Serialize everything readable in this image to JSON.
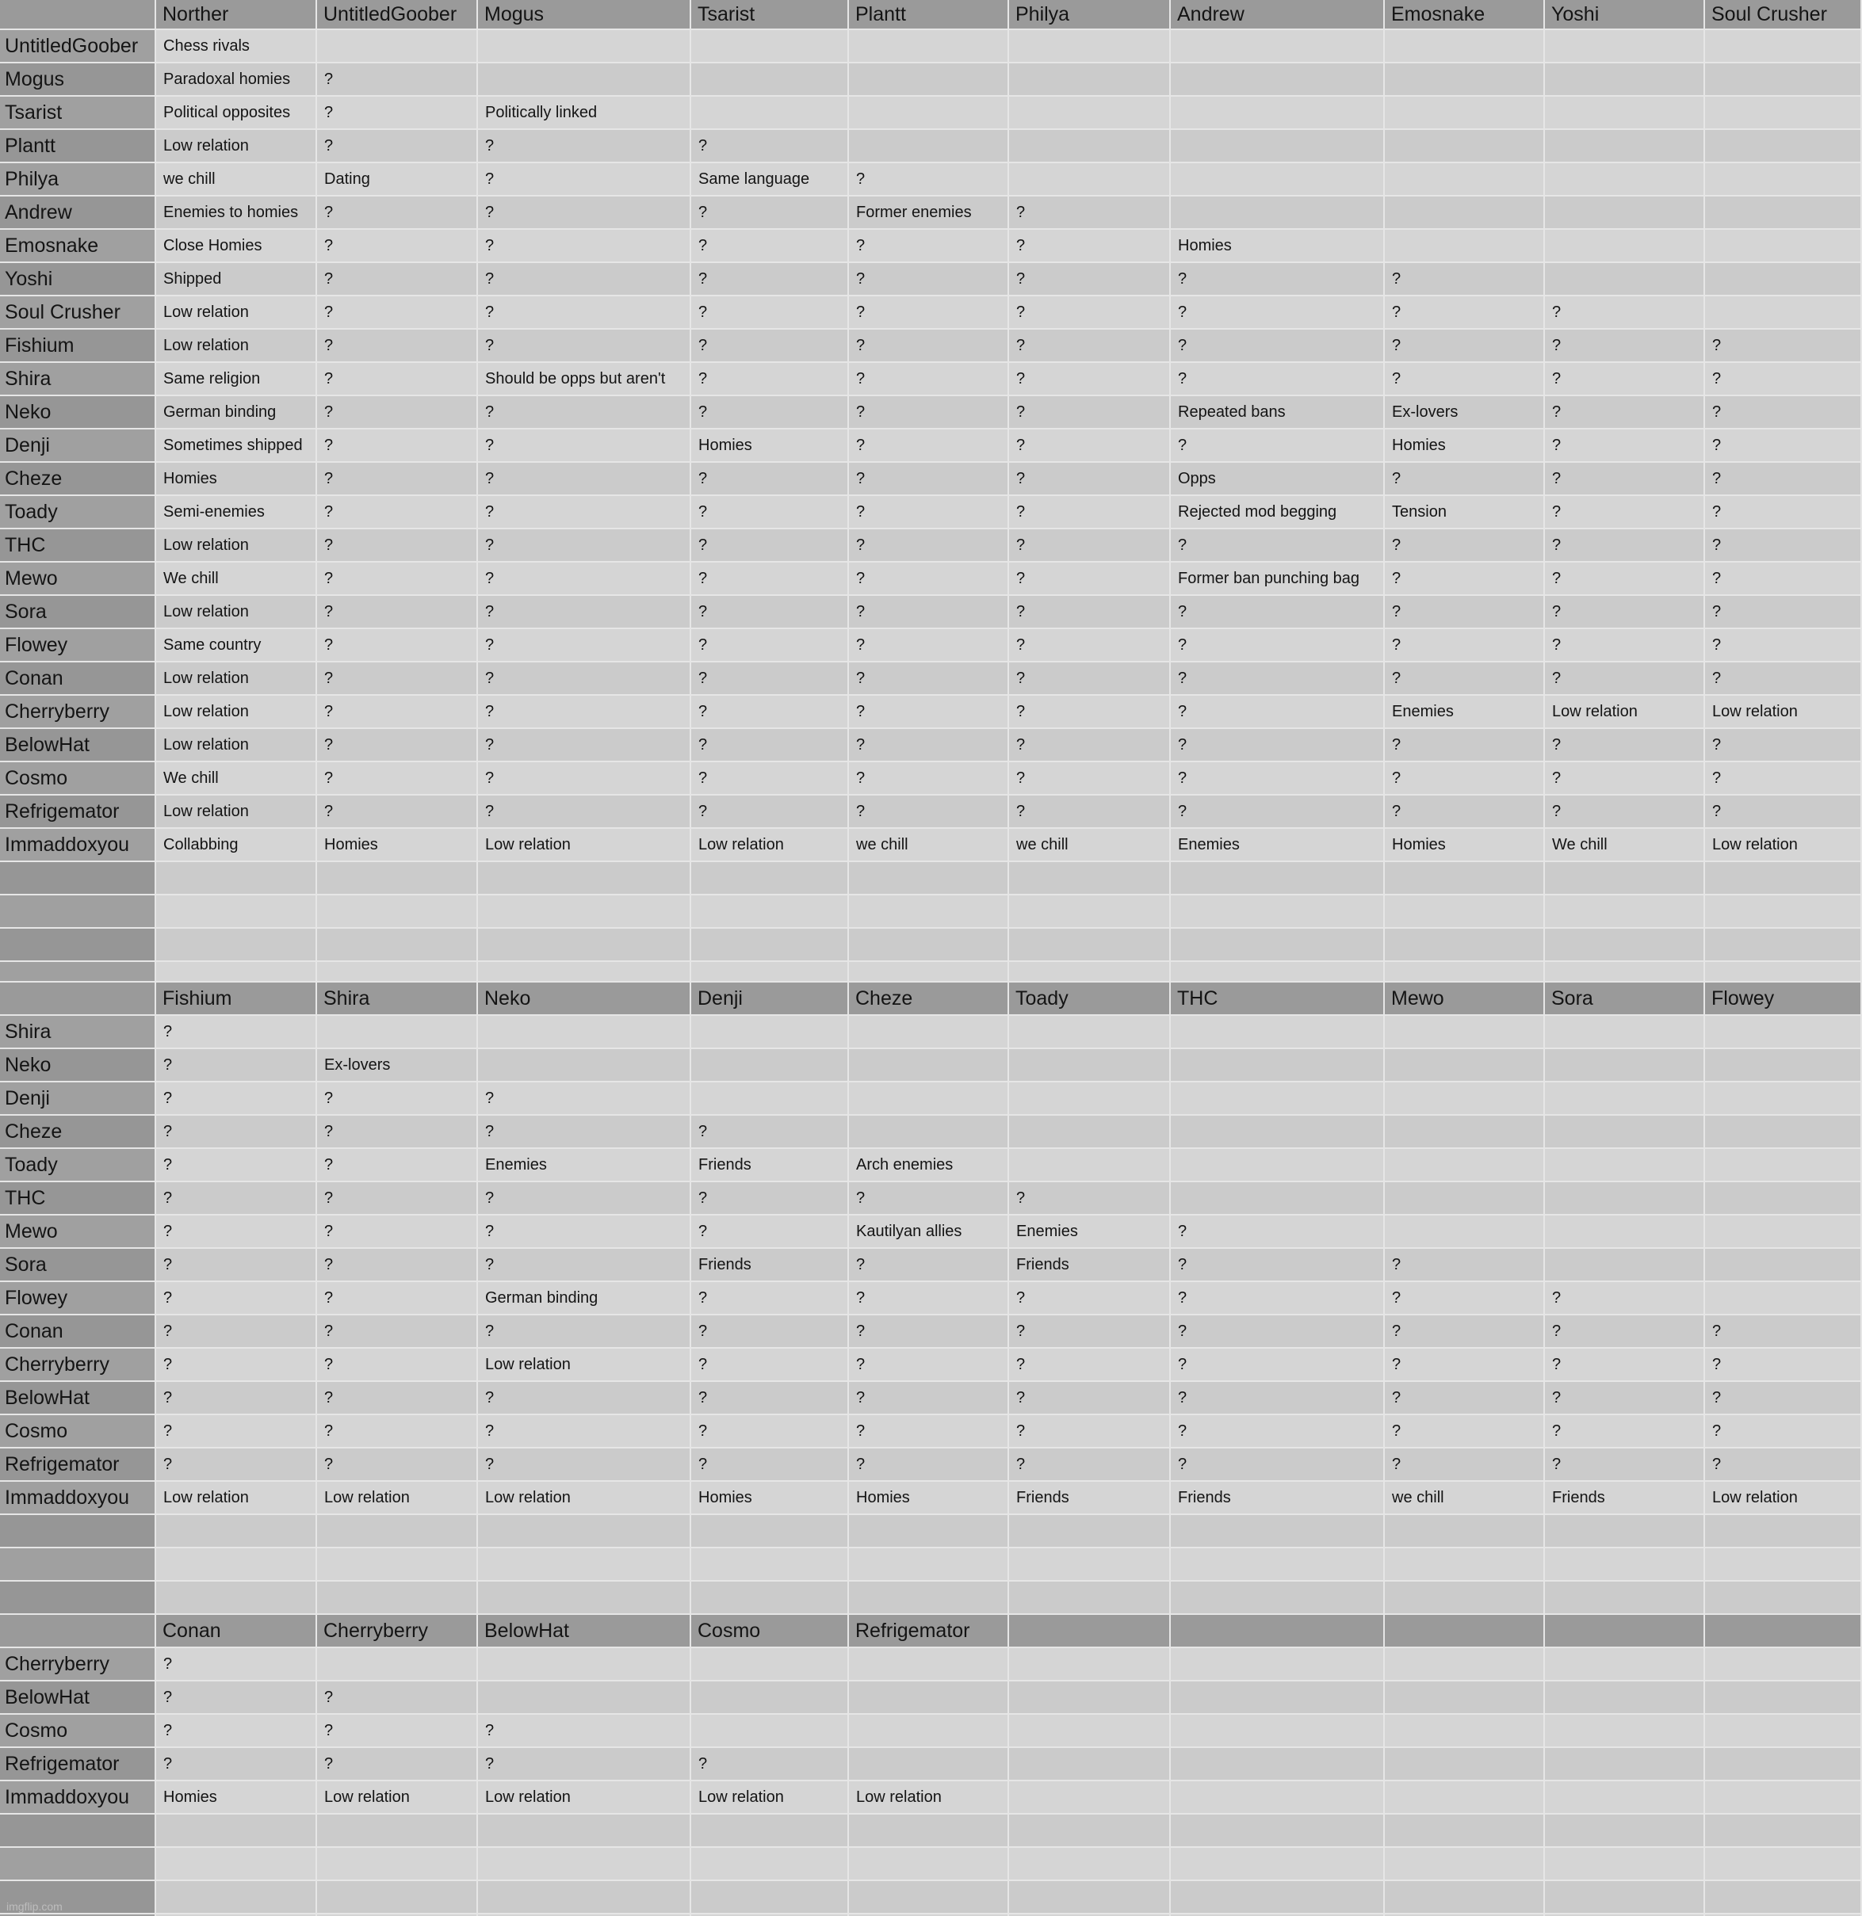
{
  "watermark": "imgflip.com",
  "colors": {
    "header_bg": "#9a9a9a",
    "row_header_even": "#a0a0a0",
    "row_header_odd": "#969696",
    "cell_even": "#d5d5d5",
    "cell_odd": "#cbcbcb",
    "grid_line": "#e6e6e6",
    "text": "#141414",
    "watermark_text": "#bdbdbd"
  },
  "chart_data": {
    "type": "table",
    "description": "Lower-triangle relationship matrix in three stacked sections; '?' marks unknown relations",
    "sections": [
      {
        "columns": [
          "Norther",
          "UntitledGoober",
          "Mogus",
          "Tsarist",
          "Plantt",
          "Philya",
          "Andrew",
          "Emosnake",
          "Yoshi",
          "Soul Crusher"
        ],
        "rows": [
          {
            "name": "UntitledGoober",
            "cells": [
              "Chess rivals"
            ]
          },
          {
            "name": "Mogus",
            "cells": [
              "Paradoxal homies",
              "?"
            ]
          },
          {
            "name": "Tsarist",
            "cells": [
              "Political opposites",
              "?",
              "Politically linked"
            ]
          },
          {
            "name": "Plantt",
            "cells": [
              "Low relation",
              "?",
              "?",
              "?"
            ]
          },
          {
            "name": "Philya",
            "cells": [
              "we chill",
              "Dating",
              "?",
              "Same language",
              "?"
            ]
          },
          {
            "name": "Andrew",
            "cells": [
              "Enemies to homies",
              "?",
              "?",
              "?",
              "Former enemies",
              "?"
            ]
          },
          {
            "name": "Emosnake",
            "cells": [
              "Close Homies",
              "?",
              "?",
              "?",
              "?",
              "?",
              "Homies"
            ]
          },
          {
            "name": "Yoshi",
            "cells": [
              "Shipped",
              "?",
              "?",
              "?",
              "?",
              "?",
              "?",
              "?"
            ]
          },
          {
            "name": "Soul Crusher",
            "cells": [
              "Low relation",
              "?",
              "?",
              "?",
              "?",
              "?",
              "?",
              "?",
              "?"
            ]
          },
          {
            "name": "Fishium",
            "cells": [
              "Low relation",
              "?",
              "?",
              "?",
              "?",
              "?",
              "?",
              "?",
              "?",
              "?"
            ]
          },
          {
            "name": "Shira",
            "cells": [
              "Same religion",
              "?",
              "Should be opps but aren't",
              "?",
              "?",
              "?",
              "?",
              "?",
              "?",
              "?"
            ]
          },
          {
            "name": "Neko",
            "cells": [
              "German binding",
              "?",
              "?",
              "?",
              "?",
              "?",
              "Repeated bans",
              "Ex-lovers",
              "?",
              "?"
            ]
          },
          {
            "name": "Denji",
            "cells": [
              "Sometimes shipped",
              "?",
              "?",
              "Homies",
              "?",
              "?",
              "?",
              "Homies",
              "?",
              "?"
            ]
          },
          {
            "name": "Cheze",
            "cells": [
              "Homies",
              "?",
              "?",
              "?",
              "?",
              "?",
              "Opps",
              "?",
              "?",
              "?"
            ]
          },
          {
            "name": "Toady",
            "cells": [
              "Semi-enemies",
              "?",
              "?",
              "?",
              "?",
              "?",
              "Rejected mod begging",
              "Tension",
              "?",
              "?"
            ]
          },
          {
            "name": "THC",
            "cells": [
              "Low relation",
              "?",
              "?",
              "?",
              "?",
              "?",
              "?",
              "?",
              "?",
              "?"
            ]
          },
          {
            "name": "Mewo",
            "cells": [
              "We chill",
              "?",
              "?",
              "?",
              "?",
              "?",
              "Former ban punching bag",
              "?",
              "?",
              "?"
            ]
          },
          {
            "name": "Sora",
            "cells": [
              "Low relation",
              "?",
              "?",
              "?",
              "?",
              "?",
              "?",
              "?",
              "?",
              "?"
            ]
          },
          {
            "name": "Flowey",
            "cells": [
              "Same country",
              "?",
              "?",
              "?",
              "?",
              "?",
              "?",
              "?",
              "?",
              "?"
            ]
          },
          {
            "name": "Conan",
            "cells": [
              "Low relation",
              "?",
              "?",
              "?",
              "?",
              "?",
              "?",
              "?",
              "?",
              "?"
            ]
          },
          {
            "name": "Cherryberry",
            "cells": [
              "Low relation",
              "?",
              "?",
              "?",
              "?",
              "?",
              "?",
              "Enemies",
              "Low relation",
              "Low relation"
            ]
          },
          {
            "name": "BelowHat",
            "cells": [
              "Low relation",
              "?",
              "?",
              "?",
              "?",
              "?",
              "?",
              "?",
              "?",
              "?"
            ]
          },
          {
            "name": "Cosmo",
            "cells": [
              "We chill",
              "?",
              "?",
              "?",
              "?",
              "?",
              "?",
              "?",
              "?",
              "?"
            ]
          },
          {
            "name": "Refrigemator",
            "cells": [
              "Low relation",
              "?",
              "?",
              "?",
              "?",
              "?",
              "?",
              "?",
              "?",
              "?"
            ]
          },
          {
            "name": "Immaddoxyou",
            "cells": [
              "Collabbing",
              "Homies",
              "Low relation",
              "Low relation",
              "we chill",
              "we chill",
              "Enemies",
              "Homies",
              "We chill",
              "Low relation"
            ]
          }
        ]
      },
      {
        "columns": [
          "Fishium",
          "Shira",
          "Neko",
          "Denji",
          "Cheze",
          "Toady",
          "THC",
          "Mewo",
          "Sora",
          "Flowey"
        ],
        "rows": [
          {
            "name": "Shira",
            "cells": [
              "?"
            ]
          },
          {
            "name": "Neko",
            "cells": [
              "?",
              "Ex-lovers"
            ]
          },
          {
            "name": "Denji",
            "cells": [
              "?",
              "?",
              "?"
            ]
          },
          {
            "name": "Cheze",
            "cells": [
              "?",
              "?",
              "?",
              "?"
            ]
          },
          {
            "name": "Toady",
            "cells": [
              "?",
              "?",
              "Enemies",
              "Friends",
              "Arch enemies"
            ]
          },
          {
            "name": "THC",
            "cells": [
              "?",
              "?",
              "?",
              "?",
              "?",
              "?"
            ]
          },
          {
            "name": "Mewo",
            "cells": [
              "?",
              "?",
              "?",
              "?",
              "Kautilyan allies",
              "Enemies",
              "?"
            ]
          },
          {
            "name": "Sora",
            "cells": [
              "?",
              "?",
              "?",
              "Friends",
              "?",
              "Friends",
              "?",
              "?"
            ]
          },
          {
            "name": "Flowey",
            "cells": [
              "?",
              "?",
              "German binding",
              "?",
              "?",
              "?",
              "?",
              "?",
              "?"
            ]
          },
          {
            "name": "Conan",
            "cells": [
              "?",
              "?",
              "?",
              "?",
              "?",
              "?",
              "?",
              "?",
              "?",
              "?"
            ]
          },
          {
            "name": "Cherryberry",
            "cells": [
              "?",
              "?",
              "Low relation",
              "?",
              "?",
              "?",
              "?",
              "?",
              "?",
              "?"
            ]
          },
          {
            "name": "BelowHat",
            "cells": [
              "?",
              "?",
              "?",
              "?",
              "?",
              "?",
              "?",
              "?",
              "?",
              "?"
            ]
          },
          {
            "name": "Cosmo",
            "cells": [
              "?",
              "?",
              "?",
              "?",
              "?",
              "?",
              "?",
              "?",
              "?",
              "?"
            ]
          },
          {
            "name": "Refrigemator",
            "cells": [
              "?",
              "?",
              "?",
              "?",
              "?",
              "?",
              "?",
              "?",
              "?",
              "?"
            ]
          },
          {
            "name": "Immaddoxyou",
            "cells": [
              "Low relation",
              "Low relation",
              "Low relation",
              "Homies",
              "Homies",
              "Friends",
              "Friends",
              "we chill",
              "Friends",
              "Low relation"
            ]
          }
        ]
      },
      {
        "columns": [
          "Conan",
          "Cherryberry",
          "BelowHat",
          "Cosmo",
          "Refrigemator",
          "",
          "",
          "",
          "",
          ""
        ],
        "rows": [
          {
            "name": "Cherryberry",
            "cells": [
              "?"
            ]
          },
          {
            "name": "BelowHat",
            "cells": [
              "?",
              "?"
            ]
          },
          {
            "name": "Cosmo",
            "cells": [
              "?",
              "?",
              "?"
            ]
          },
          {
            "name": "Refrigemator",
            "cells": [
              "?",
              "?",
              "?",
              "?"
            ]
          },
          {
            "name": "Immaddoxyou",
            "cells": [
              "Homies",
              "Low relation",
              "Low relation",
              "Low relation",
              "Low relation"
            ]
          }
        ]
      }
    ]
  }
}
